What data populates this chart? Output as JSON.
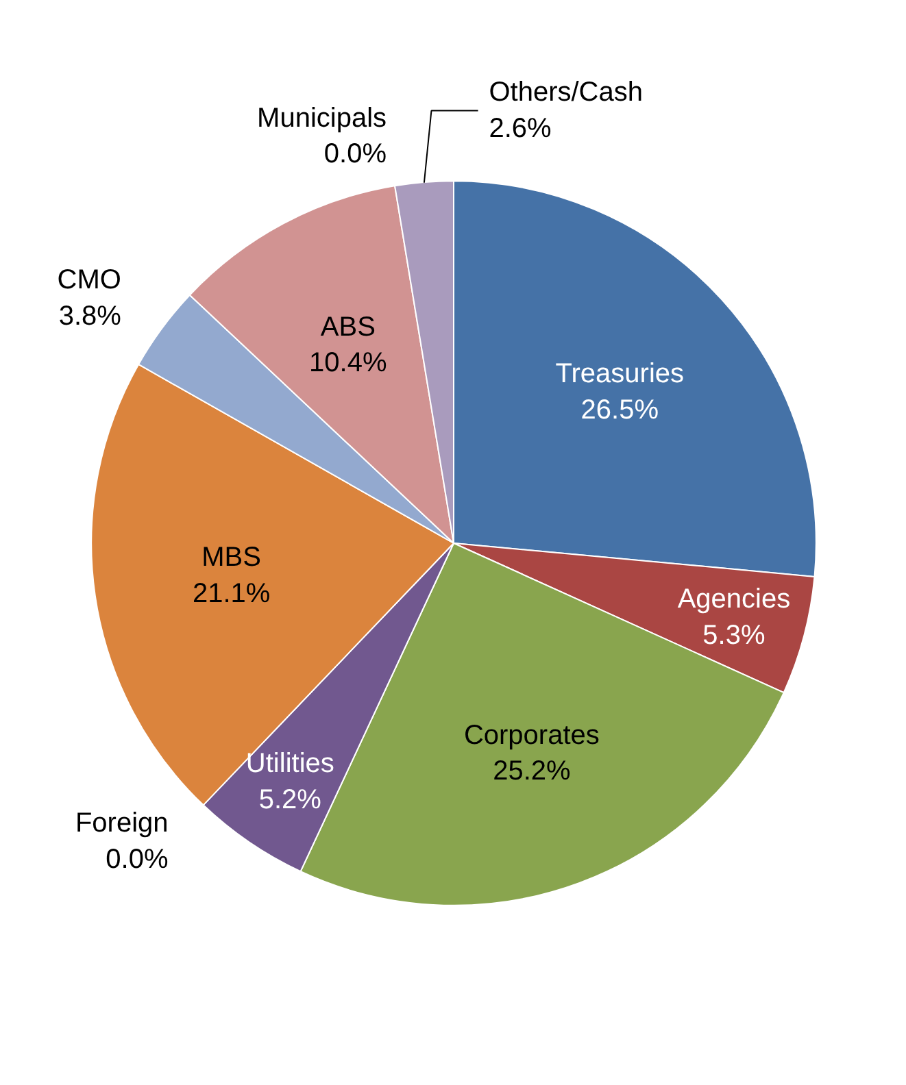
{
  "chart_data": {
    "type": "pie",
    "categories": [
      "Treasuries",
      "Agencies",
      "Corporates",
      "Utilities",
      "Foreign",
      "MBS",
      "CMO",
      "ABS",
      "Municipals",
      "Others/Cash"
    ],
    "values": [
      26.5,
      5.3,
      25.2,
      5.2,
      0.0,
      21.1,
      3.8,
      10.4,
      0.0,
      2.6
    ],
    "colors": [
      "#4572a7",
      "#aa4643",
      "#89a54e",
      "#71588f",
      "#4198af",
      "#db843d",
      "#93a9cf",
      "#d19392",
      "#b9cd96",
      "#a99bbd"
    ],
    "value_labels": [
      "26.5%",
      "5.3%",
      "25.2%",
      "5.2%",
      "0.0%",
      "21.1%",
      "3.8%",
      "10.4%",
      "0.0%",
      "2.6%"
    ]
  }
}
